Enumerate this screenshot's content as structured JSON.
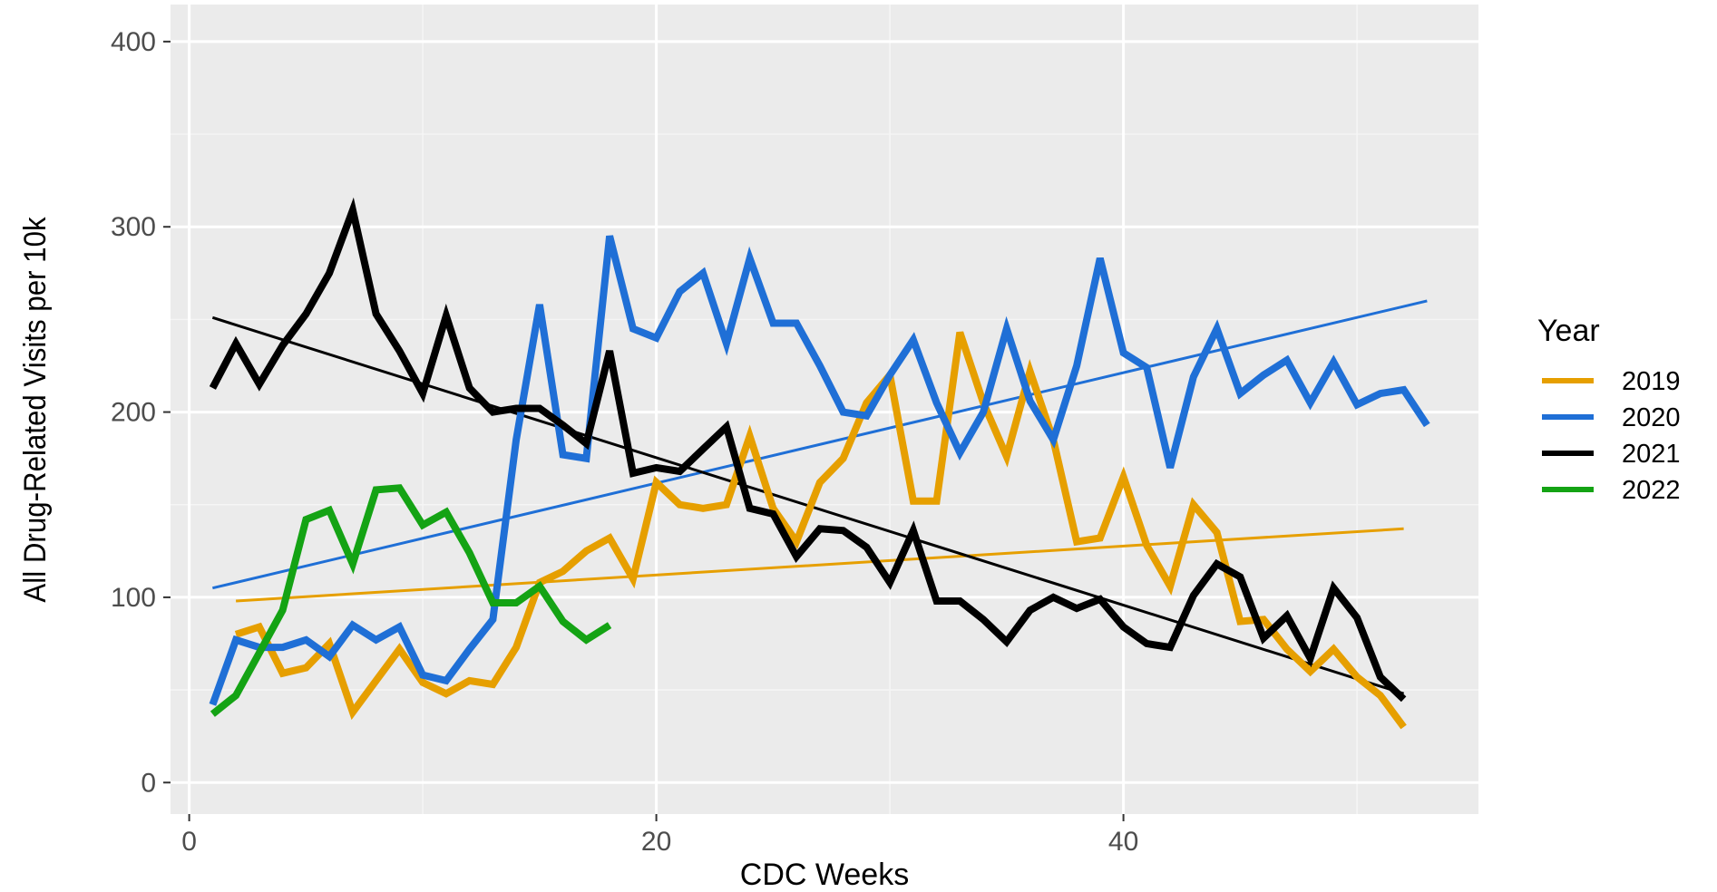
{
  "chart_data": {
    "type": "line",
    "title": "",
    "xlabel": "CDC Weeks",
    "ylabel": "All Drug-Related Visits per 10k",
    "xlim": [
      -0.8,
      55.2
    ],
    "ylim": [
      -17,
      420
    ],
    "x_ticks": [
      0,
      20,
      40
    ],
    "y_ticks": [
      0,
      100,
      200,
      300,
      400
    ],
    "grid": true,
    "legend": {
      "title": "Year",
      "position": "right"
    },
    "series": [
      {
        "name": "2019",
        "color": "#E69F00",
        "x": [
          2,
          3,
          4,
          5,
          6,
          7,
          8,
          9,
          10,
          11,
          12,
          13,
          14,
          15,
          16,
          17,
          18,
          19,
          20,
          21,
          22,
          23,
          24,
          25,
          26,
          27,
          28,
          29,
          30,
          31,
          32,
          33,
          34,
          35,
          36,
          37,
          38,
          39,
          40,
          41,
          42,
          43,
          44,
          45,
          46,
          47,
          48,
          49,
          50,
          51,
          52
        ],
        "values": [
          80,
          84,
          59,
          62,
          75,
          38,
          55,
          72,
          54,
          48,
          55,
          53,
          73,
          108,
          114,
          125,
          132,
          110,
          162,
          150,
          148,
          150,
          187,
          148,
          130,
          162,
          175,
          205,
          220,
          152,
          152,
          243,
          205,
          176,
          222,
          185,
          130,
          132,
          165,
          128,
          106,
          150,
          135,
          87,
          88,
          72,
          60,
          72,
          57,
          47,
          30
        ],
        "trend": {
          "x": [
            2,
            52
          ],
          "y": [
            98,
            137
          ]
        }
      },
      {
        "name": "2020",
        "color": "#1F6FD6",
        "x": [
          1,
          2,
          3,
          4,
          5,
          6,
          7,
          8,
          9,
          10,
          11,
          12,
          13,
          14,
          15,
          16,
          17,
          18,
          19,
          20,
          21,
          22,
          23,
          24,
          25,
          26,
          27,
          28,
          29,
          30,
          31,
          32,
          33,
          34,
          35,
          36,
          37,
          38,
          39,
          40,
          41,
          42,
          43,
          44,
          45,
          46,
          47,
          48,
          49,
          50,
          51,
          52,
          53
        ],
        "values": [
          42,
          77,
          73,
          73,
          77,
          68,
          85,
          77,
          84,
          58,
          55,
          72,
          88,
          185,
          258,
          177,
          175,
          295,
          245,
          240,
          265,
          275,
          237,
          283,
          248,
          248,
          225,
          200,
          198,
          220,
          239,
          205,
          178,
          200,
          245,
          206,
          185,
          225,
          283,
          232,
          224,
          170,
          219,
          245,
          210,
          220,
          228,
          205,
          227,
          204,
          210,
          212,
          193
        ],
        "trend": {
          "x": [
            1,
            53
          ],
          "y": [
            105,
            260
          ]
        }
      },
      {
        "name": "2021",
        "color": "#000000",
        "x": [
          1,
          2,
          3,
          4,
          5,
          6,
          7,
          8,
          9,
          10,
          11,
          12,
          13,
          14,
          15,
          16,
          17,
          18,
          19,
          20,
          21,
          22,
          23,
          24,
          25,
          26,
          27,
          28,
          29,
          30,
          31,
          32,
          33,
          34,
          35,
          36,
          37,
          38,
          39,
          40,
          41,
          42,
          43,
          44,
          45,
          46,
          47,
          48,
          49,
          50,
          51,
          52
        ],
        "values": [
          213,
          237,
          215,
          236,
          253,
          275,
          309,
          253,
          233,
          210,
          252,
          213,
          200,
          202,
          202,
          193,
          183,
          233,
          167,
          170,
          168,
          180,
          192,
          148,
          145,
          122,
          137,
          136,
          127,
          108,
          136,
          98,
          98,
          88,
          76,
          93,
          100,
          94,
          99,
          84,
          75,
          73,
          101,
          118,
          111,
          78,
          90,
          67,
          105,
          89,
          57,
          45
        ],
        "trend": {
          "x": [
            1,
            52
          ],
          "y": [
            251,
            48
          ]
        }
      },
      {
        "name": "2022",
        "color": "#14A314",
        "x": [
          1,
          2,
          3,
          4,
          5,
          6,
          7,
          8,
          9,
          10,
          11,
          12,
          13,
          14,
          15,
          16,
          17,
          18
        ],
        "values": [
          37,
          47,
          70,
          93,
          142,
          147,
          118,
          158,
          159,
          139,
          146,
          124,
          97,
          97,
          106,
          87,
          77,
          85
        ]
      }
    ]
  }
}
